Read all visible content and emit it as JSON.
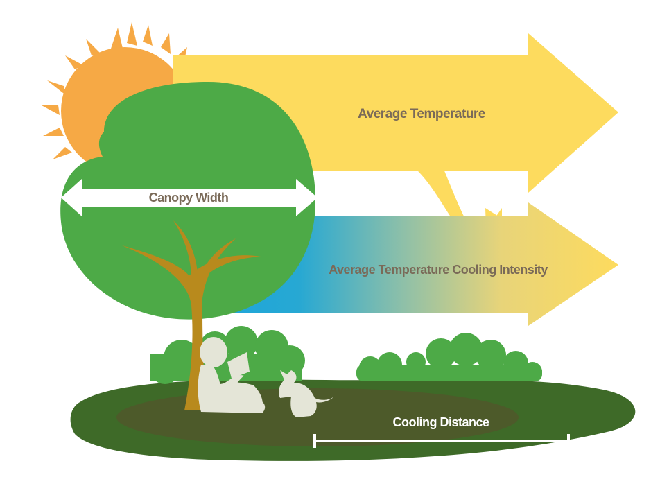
{
  "labels": {
    "average_temperature": "Average Temperature",
    "canopy_width": "Canopy Width",
    "cooling_intensity": "Average Temperature Cooling Intensity",
    "cooling_distance": "Cooling Distance"
  },
  "colors": {
    "sun": "#F6A945",
    "sun_rays": "#F6A945",
    "warm_arrow": "#FDDB5E",
    "cool_blue": "#1FA6D9",
    "canopy": "#4DAA47",
    "trunk": "#B88A1D",
    "ground_light": "#3E6A28",
    "ground_dark": "#4D5A2A",
    "bushes": "#4DAA47",
    "silhouettes": "#E4E5D7",
    "label_dark": "#7A6A58",
    "label_light": "#FFFFFF"
  }
}
